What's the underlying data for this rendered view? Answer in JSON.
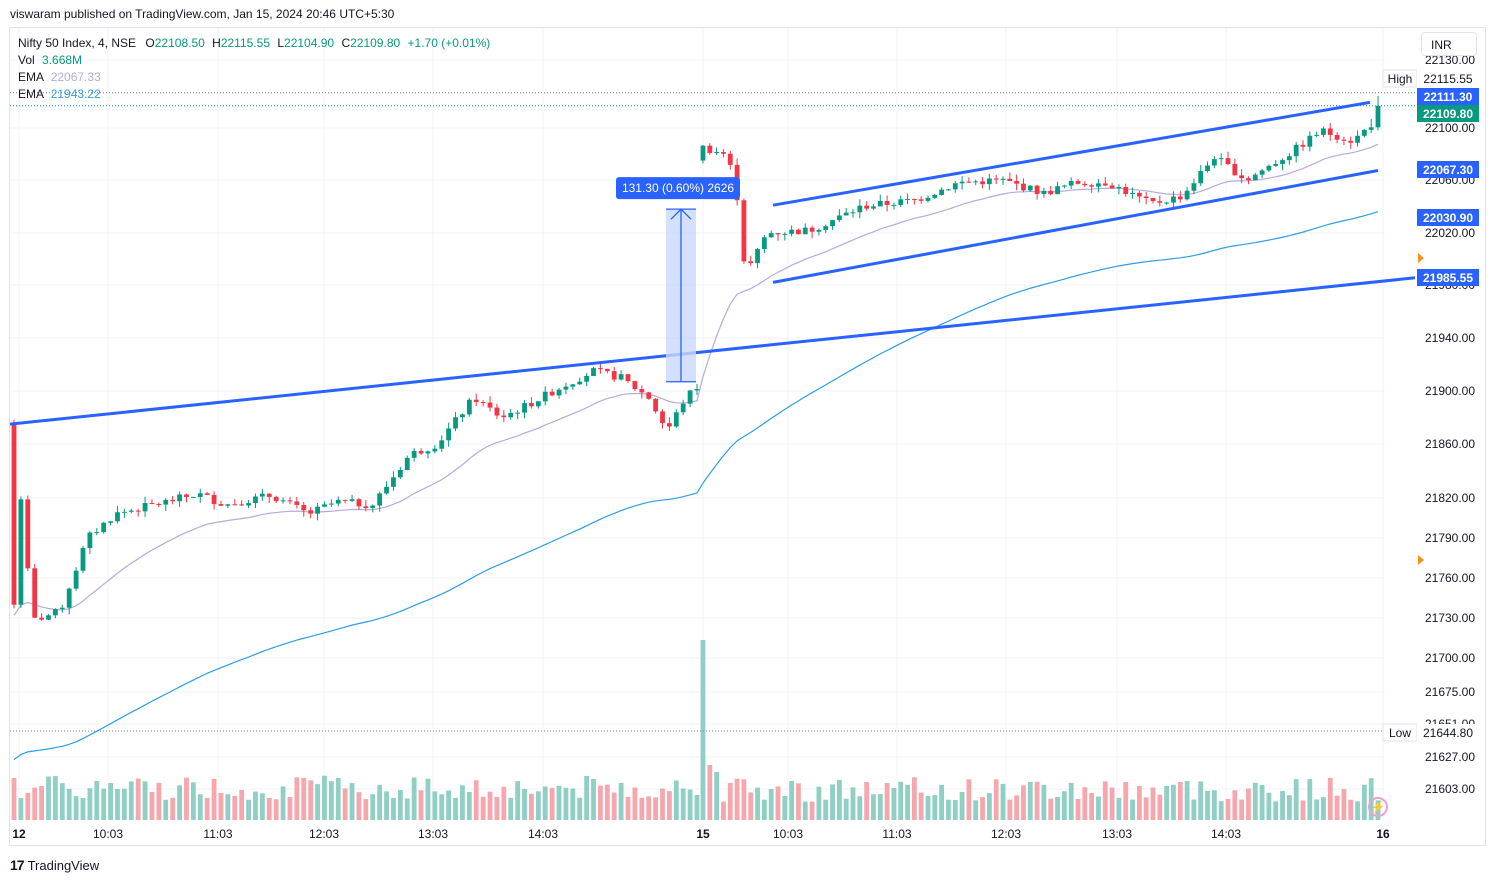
{
  "header": {
    "published": "viswaram published on TradingView.com, Jan 15, 2024 20:46 UTC+5:30"
  },
  "legend": {
    "symbol": "Nifty 50 Index, 4, NSE",
    "o_key": "O",
    "o_val": "22108.50",
    "h_key": "H",
    "h_val": "22115.55",
    "l_key": "L",
    "l_val": "22104.90",
    "c_key": "C",
    "c_val": "22109.80",
    "change": "+1.70 (+0.01%)",
    "vol_label": "Vol",
    "vol_value": "3.668M",
    "ema1_label": "EMA",
    "ema1_value": "22067.33",
    "ema2_label": "EMA",
    "ema2_value": "21943.22"
  },
  "currency": "INR",
  "branding": "TradingView",
  "colors": {
    "up": "#089981",
    "down": "#f23645",
    "up_vol": "#8fcfc4",
    "down_vol": "#f5a7ad",
    "trendline": "#2962ff",
    "ema_fast": "#b8a9e0",
    "ema_slow": "#2f9ce8",
    "measure_fill": "#c9d8fb",
    "measure_line": "#2962ff"
  },
  "chart_data": {
    "type": "candlestick",
    "title": "Nifty 50 Index, 4, NSE",
    "y_ticks": [
      "22130.00",
      "22100.00",
      "22060.00",
      "22020.00",
      "21980.00",
      "21940.00",
      "21900.00",
      "21860.00",
      "21820.00",
      "21790.00",
      "21760.00",
      "21730.00",
      "21700.00",
      "21675.00",
      "21651.00",
      "21627.00",
      "21603.00"
    ],
    "x_ticks": [
      "12",
      "10:03",
      "11:03",
      "12:03",
      "13:03",
      "14:03",
      "15",
      "10:03",
      "11:03",
      "12:03",
      "13:03",
      "14:03",
      "16"
    ],
    "price_labels": [
      {
        "prefix": "High",
        "value": "22115.55",
        "style": "high"
      },
      {
        "prefix": "",
        "value": "22111.30",
        "style": "blue"
      },
      {
        "prefix": "",
        "value": "22109.80",
        "style": "green"
      },
      {
        "prefix": "",
        "value": "22067.30",
        "style": "blue"
      },
      {
        "prefix": "",
        "value": "22030.90",
        "style": "blue"
      },
      {
        "prefix": "",
        "value": "21985.55",
        "style": "blue"
      },
      {
        "prefix": "Low",
        "value": "21644.80",
        "style": "low"
      }
    ],
    "measure": {
      "label": "131.30 (0.60%) 2626"
    },
    "key_levels": {
      "day1_open": 21876,
      "day1_low": 21715,
      "day1_close": 21895,
      "day2_low": 21962,
      "day2_high": 22085,
      "last_close": 22109.8,
      "period_high": 22115.55,
      "period_low": 21644.8
    },
    "series": [
      {
        "name": "EMA",
        "last": 22067.33
      },
      {
        "name": "EMA",
        "last": 21943.22
      }
    ]
  }
}
